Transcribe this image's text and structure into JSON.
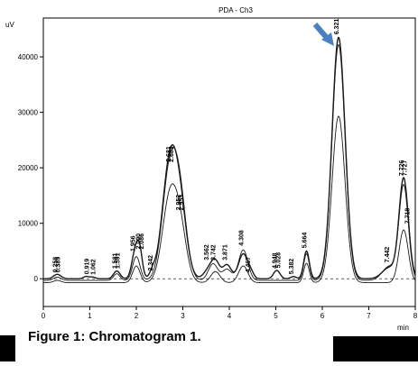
{
  "chart_data": {
    "type": "line",
    "title": "PDA - Ch3",
    "xlabel": "min",
    "ylabel": "uV",
    "xlim": [
      0,
      8
    ],
    "ylim": [
      -5000,
      47000
    ],
    "x_ticks": [
      0,
      1,
      2,
      3,
      4,
      5,
      6,
      7,
      8
    ],
    "y_ticks": [
      0,
      10000,
      20000,
      30000,
      40000
    ],
    "y_tick_labels": [
      "0",
      "10000",
      "20000",
      "30000",
      "40000"
    ],
    "grid": false,
    "series": [
      {
        "peaks": [
          [
            0.3,
            800,
            0.08
          ],
          [
            0.92,
            400,
            0.06
          ],
          [
            1.06,
            300,
            0.06
          ],
          [
            1.58,
            1400,
            0.07
          ],
          [
            1.97,
            4500,
            0.07
          ],
          [
            2.07,
            4800,
            0.06
          ],
          [
            2.35,
            1000,
            0.06
          ],
          [
            2.72,
            20500,
            0.16
          ],
          [
            2.95,
            10500,
            0.14
          ],
          [
            3.55,
            1500,
            0.1
          ],
          [
            3.7,
            3000,
            0.09
          ],
          [
            3.95,
            2500,
            0.09
          ],
          [
            4.3,
            4500,
            0.1
          ],
          [
            4.47,
            800,
            0.06
          ],
          [
            5.02,
            1500,
            0.07
          ],
          [
            5.38,
            400,
            0.06
          ],
          [
            5.66,
            5000,
            0.06
          ],
          [
            6.35,
            43500,
            0.14
          ],
          [
            7.44,
            2000,
            0.15
          ],
          [
            7.75,
            18000,
            0.1
          ]
        ],
        "offset": 0
      },
      {
        "peaks": [
          [
            0.3,
            600,
            0.08
          ],
          [
            1.58,
            1200,
            0.07
          ],
          [
            2.0,
            4300,
            0.08
          ],
          [
            2.72,
            19500,
            0.16
          ],
          [
            2.95,
            12000,
            0.14
          ],
          [
            3.65,
            3000,
            0.1
          ],
          [
            3.95,
            2000,
            0.1
          ],
          [
            4.3,
            5500,
            0.1
          ],
          [
            5.66,
            4800,
            0.06
          ],
          [
            6.35,
            42500,
            0.14
          ],
          [
            7.44,
            2500,
            0.15
          ],
          [
            7.75,
            17000,
            0.1
          ]
        ],
        "offset": -300
      },
      {
        "peaks": [
          [
            0.3,
            400,
            0.08
          ],
          [
            2.0,
            3000,
            0.08
          ],
          [
            2.72,
            15000,
            0.16
          ],
          [
            2.95,
            8000,
            0.14
          ],
          [
            3.7,
            2000,
            0.1
          ],
          [
            4.3,
            3000,
            0.1
          ],
          [
            5.66,
            3500,
            0.06
          ],
          [
            6.35,
            30000,
            0.14
          ],
          [
            7.75,
            9500,
            0.1
          ]
        ],
        "offset": -700
      }
    ],
    "peak_labels": [
      {
        "x": 0.3,
        "y": 800,
        "text": "0.258"
      },
      {
        "x": 0.36,
        "y": 800,
        "text": "0.389"
      },
      {
        "x": 0.98,
        "y": 500,
        "text": "0.919"
      },
      {
        "x": 1.12,
        "y": 400,
        "text": "1.062"
      },
      {
        "x": 1.58,
        "y": 1500,
        "text": "1.581"
      },
      {
        "x": 1.64,
        "y": 1500,
        "text": "1.591"
      },
      {
        "x": 1.97,
        "y": 4600,
        "text": "1.956"
      },
      {
        "x": 2.09,
        "y": 5000,
        "text": "2.090"
      },
      {
        "x": 2.16,
        "y": 5000,
        "text": "2.086"
      },
      {
        "x": 2.35,
        "y": 1100,
        "text": "2.342"
      },
      {
        "x": 2.74,
        "y": 20700,
        "text": "2.681"
      },
      {
        "x": 2.8,
        "y": 20700,
        "text": "2.683"
      },
      {
        "x": 2.95,
        "y": 12000,
        "text": "2.952"
      },
      {
        "x": 3.01,
        "y": 12000,
        "text": "2.953"
      },
      {
        "x": 3.55,
        "y": 3000,
        "text": "3.562"
      },
      {
        "x": 3.7,
        "y": 3000,
        "text": "3.742"
      },
      {
        "x": 3.95,
        "y": 3000,
        "text": "3.871"
      },
      {
        "x": 4.3,
        "y": 5600,
        "text": "4.308"
      },
      {
        "x": 4.45,
        "y": 800,
        "text": "4.467"
      },
      {
        "x": 5.02,
        "y": 1500,
        "text": "4.948"
      },
      {
        "x": 5.1,
        "y": 1600,
        "text": "5.028"
      },
      {
        "x": 5.38,
        "y": 500,
        "text": "5.382"
      },
      {
        "x": 5.66,
        "y": 5200,
        "text": "5.664"
      },
      {
        "x": 6.35,
        "y": 43700,
        "text": "6.321"
      },
      {
        "x": 7.44,
        "y": 2600,
        "text": "7.442"
      },
      {
        "x": 7.75,
        "y": 18200,
        "text": "7.726"
      },
      {
        "x": 7.82,
        "y": 18200,
        "text": "7.727"
      },
      {
        "x": 7.88,
        "y": 9600,
        "text": "7.718"
      }
    ]
  },
  "caption": "Figure 1: Chromatogram 1.",
  "colors": {
    "trace": "#1a1a1a",
    "arrow": "#4a80bf",
    "background": "#ffffff"
  }
}
